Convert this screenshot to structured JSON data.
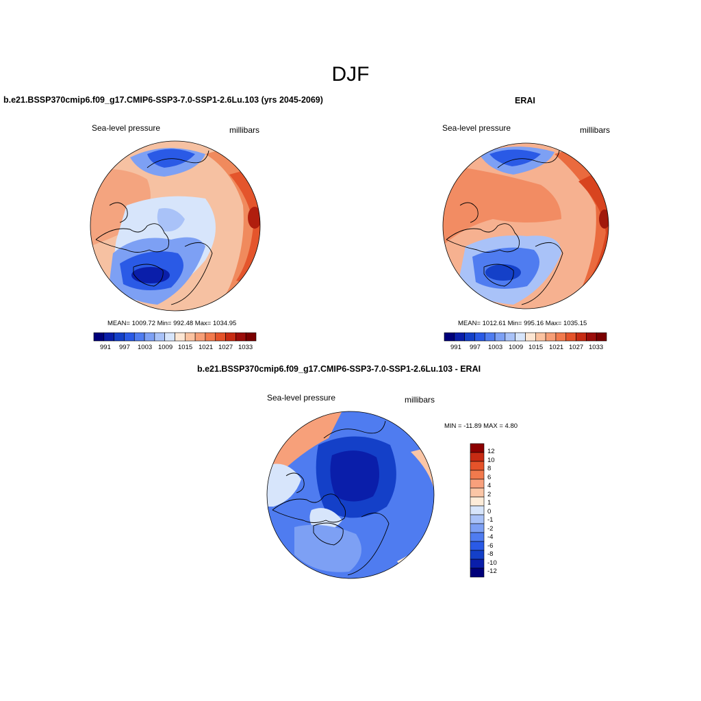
{
  "figure": {
    "title": "DJF"
  },
  "colors": {
    "seq_palette": [
      "#00007a",
      "#0a1eaa",
      "#1440c8",
      "#2a5ae6",
      "#4f7cf0",
      "#7da0f4",
      "#a9c2f8",
      "#d7e5fb",
      "#fde6d3",
      "#fbc2a0",
      "#f79e76",
      "#f27a4d",
      "#e5532a",
      "#c72b13",
      "#9c0d0a",
      "#7a0000"
    ],
    "diff_palette": [
      "#00007a",
      "#0a1eaa",
      "#1440c8",
      "#2a5ae6",
      "#4f7cf0",
      "#7da0f4",
      "#a9c2f8",
      "#d7e5fb",
      "#fdecd9",
      "#fbc6a6",
      "#f8a07c",
      "#f27a4d",
      "#e5532a",
      "#c72b13",
      "#8c0000"
    ],
    "ocean_land_line": "#000000"
  },
  "panels": {
    "model": {
      "title": "b.e21.BSSP370cmip6.f09_g17.CMIP6-SSP3-7.0-SSP1-2.6Lu.103 (yrs 2045-2069)",
      "left_label": "Sea-level pressure",
      "right_label": "millibars",
      "stats": "MEAN= 1009.72  Min= 992.48  Max= 1034.95",
      "colorbar_labels": [
        "991",
        "997",
        "1003",
        "1009",
        "1015",
        "1021",
        "1027",
        "1033"
      ]
    },
    "obs": {
      "title": "ERAI",
      "left_label": "Sea-level pressure",
      "right_label": "millibars",
      "stats": "MEAN= 1012.61  Min= 995.16  Max= 1035.15",
      "colorbar_labels": [
        "991",
        "997",
        "1003",
        "1009",
        "1015",
        "1021",
        "1027",
        "1033"
      ]
    },
    "diff": {
      "title": "b.e21.BSSP370cmip6.f09_g17.CMIP6-SSP3-7.0-SSP1-2.6Lu.103 - ERAI",
      "left_label": "Sea-level pressure",
      "right_label": "millibars",
      "stats": "MIN = -11.89 MAX =   4.80",
      "colorbar_labels": [
        "12",
        "10",
        "8",
        "6",
        "4",
        "2",
        "1",
        "0",
        "-1",
        "-2",
        "-4",
        "-6",
        "-8",
        "-10",
        "-12"
      ]
    }
  }
}
